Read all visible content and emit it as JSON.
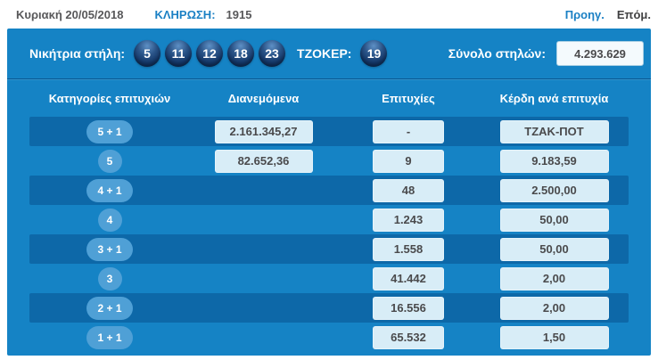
{
  "header": {
    "date": "Κυριακή 20/05/2018",
    "draw_label": "ΚΛΗΡΩΣΗ:",
    "draw_number": "1915",
    "prev_label": "Προηγ.",
    "next_label": "Επόμ."
  },
  "panel": {
    "winning_label": "Νικήτρια στήλη:",
    "numbers": [
      "5",
      "11",
      "12",
      "18",
      "23"
    ],
    "joker_label": "ΤΖΟΚΕΡ:",
    "joker_number": "19",
    "total_label": "Σύνολο στηλών:",
    "total_value": "4.293.629"
  },
  "table": {
    "headers": [
      "Κατηγορίες επιτυχιών",
      "Διανεμόμενα",
      "Επιτυχίες",
      "Κέρδη ανά επιτυχία"
    ],
    "rows": [
      {
        "category": "5 + 1",
        "distributed": "2.161.345,27",
        "winners": "-",
        "prize": "ΤΖΑΚ-ΠΟΤ",
        "shaded": true
      },
      {
        "category": "5",
        "distributed": "82.652,36",
        "winners": "9",
        "prize": "9.183,59",
        "shaded": false
      },
      {
        "category": "4 + 1",
        "distributed": "",
        "winners": "48",
        "prize": "2.500,00",
        "shaded": true
      },
      {
        "category": "4",
        "distributed": "",
        "winners": "1.243",
        "prize": "50,00",
        "shaded": false
      },
      {
        "category": "3 + 1",
        "distributed": "",
        "winners": "1.558",
        "prize": "50,00",
        "shaded": true
      },
      {
        "category": "3",
        "distributed": "",
        "winners": "41.442",
        "prize": "2,00",
        "shaded": false
      },
      {
        "category": "2 + 1",
        "distributed": "",
        "winners": "16.556",
        "prize": "2,00",
        "shaded": true
      },
      {
        "category": "1 + 1",
        "distributed": "",
        "winners": "65.532",
        "prize": "1,50",
        "shaded": false
      }
    ]
  },
  "colors": {
    "panel_blue": "#1583c5",
    "stripe_blue": "#0d68a8",
    "pill_blue": "#4fa0d6",
    "value_box_blue": "#d8edf7",
    "link_blue": "#1b80c4",
    "ball_navy": "#14386a",
    "text_dark": "#4a4a4c"
  }
}
